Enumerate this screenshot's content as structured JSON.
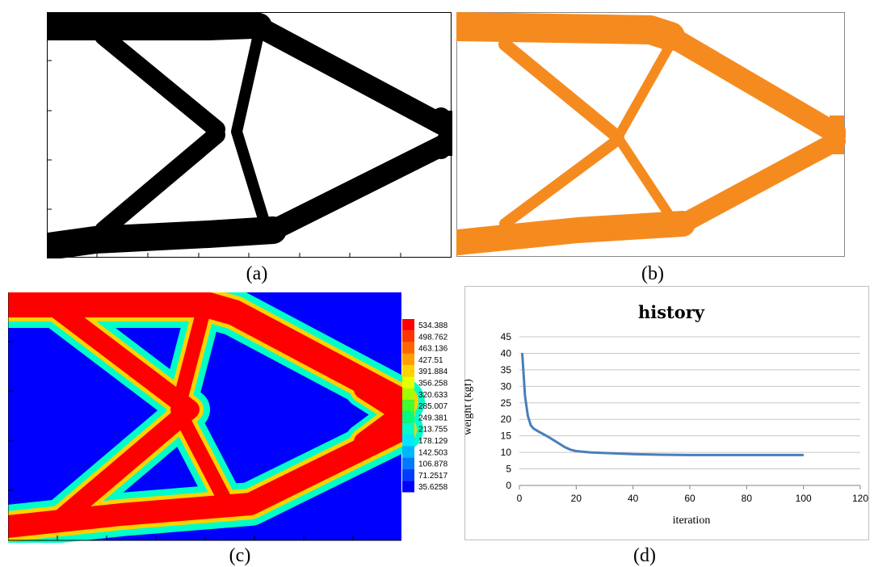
{
  "captions": {
    "a": "(a)",
    "b": "(b)",
    "c": "(c)",
    "d": "(d)"
  },
  "colors": {
    "black_structure": "#000000",
    "orange_structure": "#f58b1f",
    "contour_low": "#0000ff",
    "contour_high": "#ff0000",
    "history_line": "#4a7ebb"
  },
  "legend": {
    "values": [
      "534.388",
      "498.762",
      "463.136",
      "427.51",
      "391.884",
      "356.258",
      "320.633",
      "285.007",
      "249.381",
      "213.755",
      "178.129",
      "142.503",
      "106.878",
      "71.2517",
      "35.6258"
    ],
    "colors": [
      "#ff0000",
      "#ff3300",
      "#ff6600",
      "#ffa000",
      "#ffd200",
      "#e8ff00",
      "#a0ff00",
      "#40ff30",
      "#00ff80",
      "#00ffc8",
      "#00e6ff",
      "#00b4ff",
      "#0078ff",
      "#003cff",
      "#0000ff"
    ]
  },
  "chart_data": {
    "type": "line",
    "title": "history",
    "xlabel": "iteration",
    "ylabel": "weight (kgf)",
    "xlim": [
      0,
      120
    ],
    "ylim": [
      0,
      45
    ],
    "xticks": [
      0,
      20,
      40,
      60,
      80,
      100,
      120
    ],
    "yticks": [
      0,
      5,
      10,
      15,
      20,
      25,
      30,
      35,
      40,
      45
    ],
    "grid": true,
    "series": [
      {
        "x": [
          1,
          2,
          3,
          4,
          5,
          7,
          10,
          13,
          16,
          18,
          20,
          25,
          30,
          40,
          50,
          60,
          70,
          80,
          90,
          100
        ],
        "y": [
          40,
          27,
          21,
          18.2,
          17.2,
          16.2,
          14.8,
          13.2,
          11.6,
          10.8,
          10.4,
          10.0,
          9.8,
          9.5,
          9.3,
          9.2,
          9.2,
          9.2,
          9.2,
          9.2
        ]
      }
    ]
  }
}
